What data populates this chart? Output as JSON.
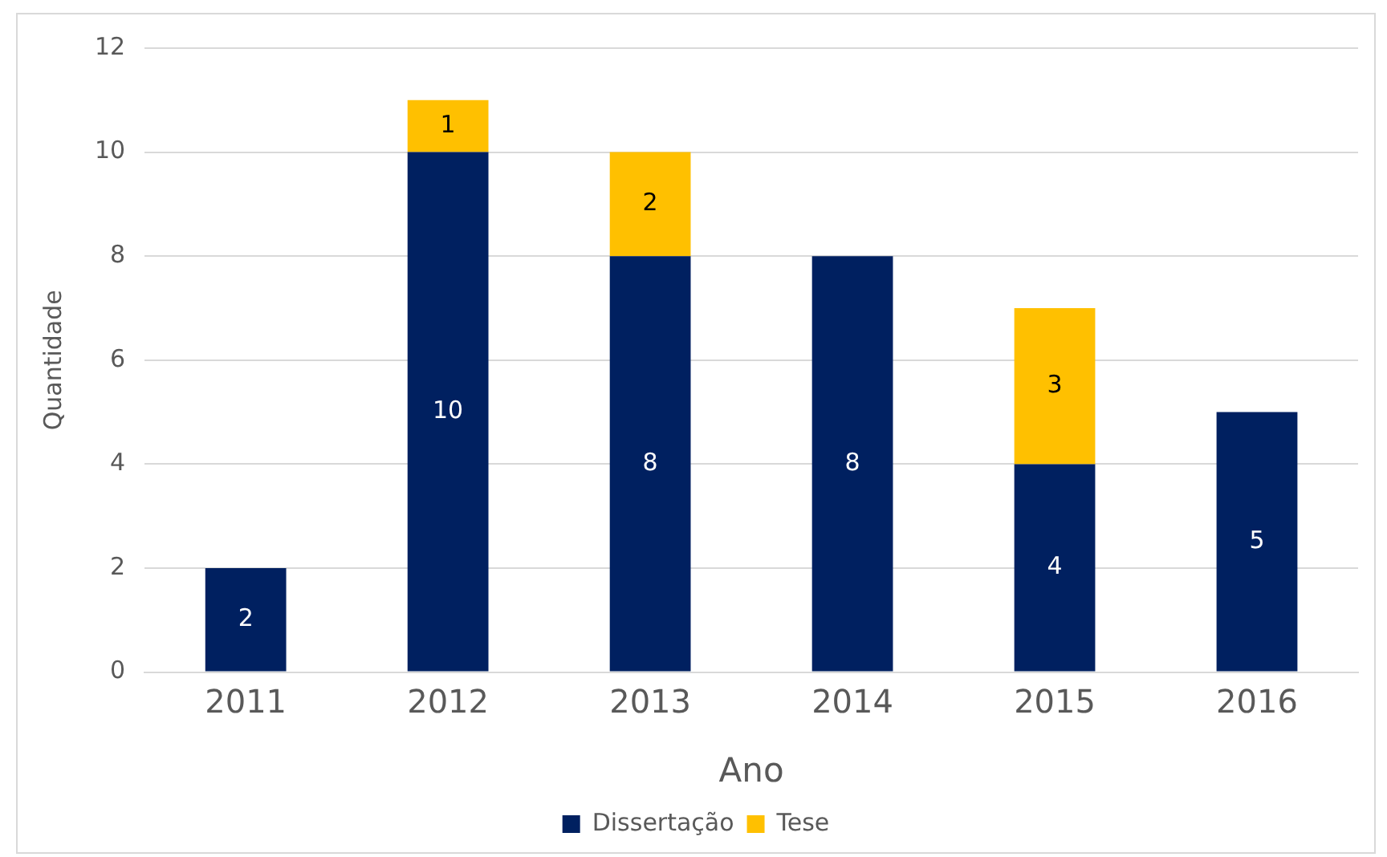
{
  "chart_data": {
    "type": "bar",
    "stacked": true,
    "xlabel": "Ano",
    "ylabel": "Quantidade",
    "categories": [
      "2011",
      "2012",
      "2013",
      "2014",
      "2015",
      "2016"
    ],
    "series": [
      {
        "name": "Dissertação",
        "color": "#002060",
        "values": [
          2,
          10,
          8,
          8,
          4,
          5
        ]
      },
      {
        "name": "Tese",
        "color": "#ffc000",
        "values": [
          null,
          1,
          2,
          null,
          3,
          null
        ]
      }
    ],
    "ylim": [
      0,
      12
    ],
    "yticks": [
      0,
      2,
      4,
      6,
      8,
      10,
      12
    ],
    "grid": "y",
    "legend": "bottom",
    "data_labels": true
  }
}
